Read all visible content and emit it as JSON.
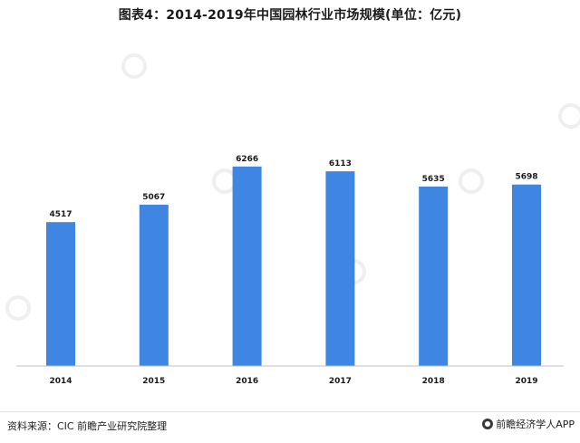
{
  "title": "图表4：2014-2019年中国园林行业市场规模(单位：亿元)",
  "source": "资料来源：CIC 前瞻产业研究院整理",
  "brand": "前瞻经济学人APP",
  "colors": {
    "bar": "#3f86e3",
    "axis": "#bfbfbf",
    "label": "#1a1a1a"
  },
  "chart_data": {
    "type": "bar",
    "title": "图表4：2014-2019年中国园林行业市场规模(单位：亿元)",
    "xlabel": "",
    "ylabel": "",
    "categories": [
      "2014",
      "2015",
      "2016",
      "2017",
      "2018",
      "2019"
    ],
    "values": [
      4517,
      5067,
      6266,
      6113,
      5635,
      5698
    ],
    "data_labels": [
      "4517",
      "5067",
      "6266",
      "6113",
      "5635",
      "5698"
    ],
    "ylim": [
      0,
      7000
    ],
    "grid": false,
    "legend": "none"
  }
}
